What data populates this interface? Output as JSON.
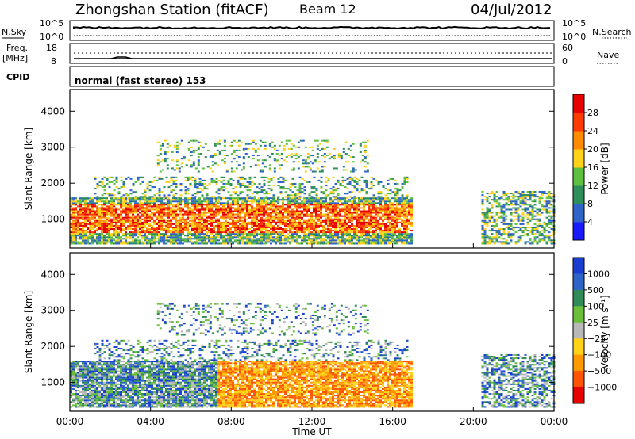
{
  "header": {
    "station": "Zhongshan Station (fitACF)",
    "beam": "Beam 12",
    "date": "04/Jul/2012"
  },
  "strip_panels": {
    "nsky_label": "N.Sky",
    "nsky_ticks": [
      "10^5",
      "10^0"
    ],
    "nsearch_label": "N.Search",
    "nsearch_ticks": [
      "10^5",
      "10^0"
    ],
    "freq_label_top": "Freq.",
    "freq_label_bottom": "[MHz]",
    "freq_ticks": [
      "18",
      "8"
    ],
    "nave_label": "Nave",
    "nave_ticks": [
      "60",
      "0"
    ],
    "cpid_label": "CPID",
    "cpid_value": "normal (fast stereo) 153"
  },
  "chart_data": [
    {
      "type": "heatmap",
      "name": "power-panel",
      "ylabel": "Slant Range [km]",
      "y_ticks": [
        1000,
        2000,
        3000,
        4000
      ],
      "ylim": [
        200,
        4600
      ],
      "xlabel": "",
      "colorbar": {
        "label": "Power [dB]",
        "ticks": [
          "4",
          "8",
          "12",
          "16",
          "20",
          "24",
          "28"
        ],
        "colors": [
          "#1a1aff",
          "#2e64c8",
          "#2f8f5a",
          "#5fbf3f",
          "#ffd21a",
          "#ff8c00",
          "#ff3c00",
          "#e60000"
        ]
      }
    },
    {
      "type": "heatmap",
      "name": "velocity-panel",
      "ylabel": "Slant Range [km]",
      "y_ticks": [
        1000,
        2000,
        3000,
        4000
      ],
      "ylim": [
        200,
        4600
      ],
      "xlabel": "Time UT",
      "x_ticks": [
        "00:00",
        "04:00",
        "08:00",
        "12:00",
        "16:00",
        "20:00",
        "00:00"
      ],
      "colorbar": {
        "label": "Velocity [m s⁻¹]",
        "ticks": [
          "1000",
          "500",
          "100",
          "25",
          "−25",
          "−100",
          "−500",
          "−1000"
        ],
        "colors": [
          "#1a3fd0",
          "#2e64c8",
          "#2e8b57",
          "#6abf3a",
          "#b8b8b8",
          "#ffd21a",
          "#ff9900",
          "#ff5500",
          "#e60000"
        ]
      }
    }
  ]
}
